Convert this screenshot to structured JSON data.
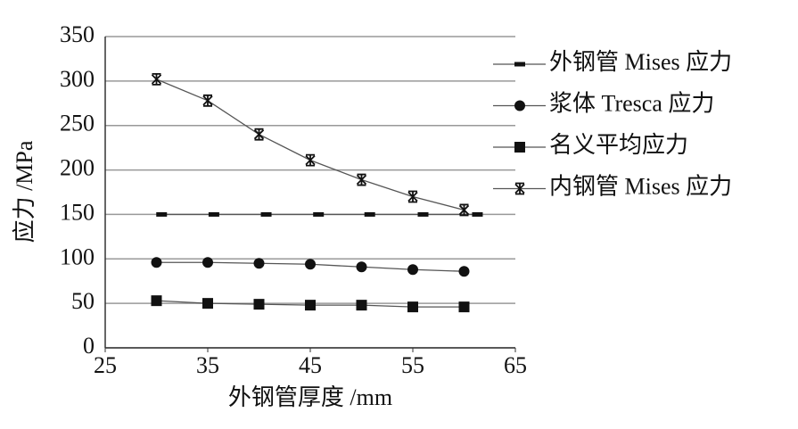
{
  "chart_data": {
    "type": "line",
    "xlabel": "外钢管厚度 /mm",
    "ylabel": "应力 /MPa",
    "xlim": [
      25,
      65
    ],
    "xticks": [
      25,
      35,
      45,
      55,
      65
    ],
    "ylim": [
      0,
      350
    ],
    "yticks": [
      0,
      50,
      100,
      150,
      200,
      250,
      300,
      350
    ],
    "grid": true,
    "legend": "right",
    "series": [
      {
        "name": "外钢管 Mises 应力",
        "color": "#111111",
        "marker": "dash",
        "x": [
          30.5,
          35.6,
          40.7,
          45.8,
          50.8,
          56,
          61.3
        ],
        "values": [
          150,
          150,
          150,
          150,
          150,
          150,
          150
        ]
      },
      {
        "name": "浆体 Tresca 应力",
        "color": "#111111",
        "marker": "circle",
        "x": [
          30,
          35,
          40,
          45,
          50,
          55,
          60
        ],
        "values": [
          96,
          96,
          95,
          94,
          91,
          88,
          86
        ]
      },
      {
        "name": "名义平均应力",
        "color": "#111111",
        "marker": "square",
        "x": [
          30,
          35,
          40,
          45,
          50,
          55,
          60
        ],
        "values": [
          53,
          50,
          49,
          48,
          48,
          46,
          46
        ]
      },
      {
        "name": "内钢管 Mises 应力",
        "color": "#111111",
        "marker": "star",
        "x": [
          30,
          35,
          40,
          45,
          50,
          55,
          60
        ],
        "values": [
          302,
          278,
          240,
          211,
          189,
          170,
          155
        ]
      }
    ]
  }
}
